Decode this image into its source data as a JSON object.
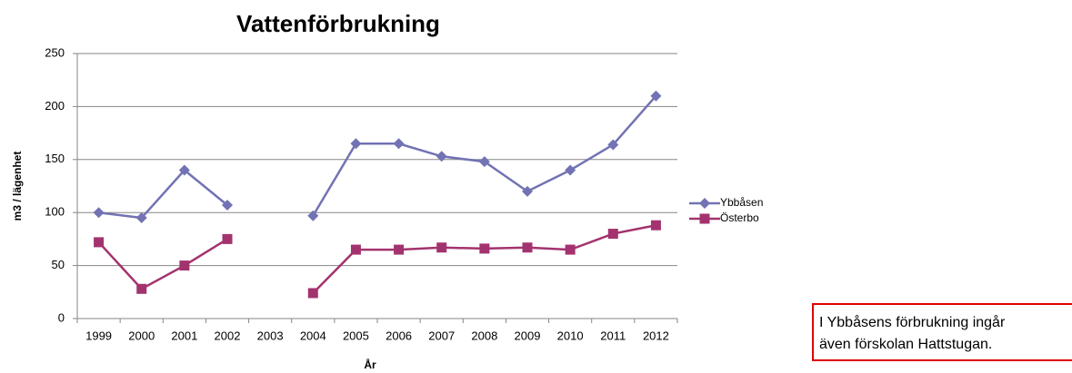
{
  "chart_data": {
    "type": "line",
    "title": "Vattenförbrukning",
    "x_label": "År",
    "y_label": "m3 / lägenhet",
    "categories": [
      "1999",
      "2000",
      "2001",
      "2002",
      "2003",
      "2004",
      "2005",
      "2006",
      "2007",
      "2008",
      "2009",
      "2010",
      "2011",
      "2012"
    ],
    "series": [
      {
        "name": "Ybbåsen",
        "color": "#7272b4",
        "marker": "diamond",
        "values": [
          100,
          95,
          140,
          107,
          null,
          97,
          165,
          165,
          153,
          148,
          120,
          140,
          164,
          210
        ]
      },
      {
        "name": "Österbo",
        "color": "#a3336e",
        "marker": "square",
        "values": [
          72,
          28,
          50,
          75,
          null,
          24,
          65,
          65,
          67,
          66,
          67,
          65,
          80,
          88
        ]
      }
    ],
    "ylim": [
      0,
      250
    ],
    "yticks": [
      0,
      50,
      100,
      150,
      200,
      250
    ],
    "grid": true,
    "legend": "right",
    "annotation_lines": [
      "I Ybbåsens förbrukning ingår",
      "även förskolan Hattstugan."
    ]
  }
}
